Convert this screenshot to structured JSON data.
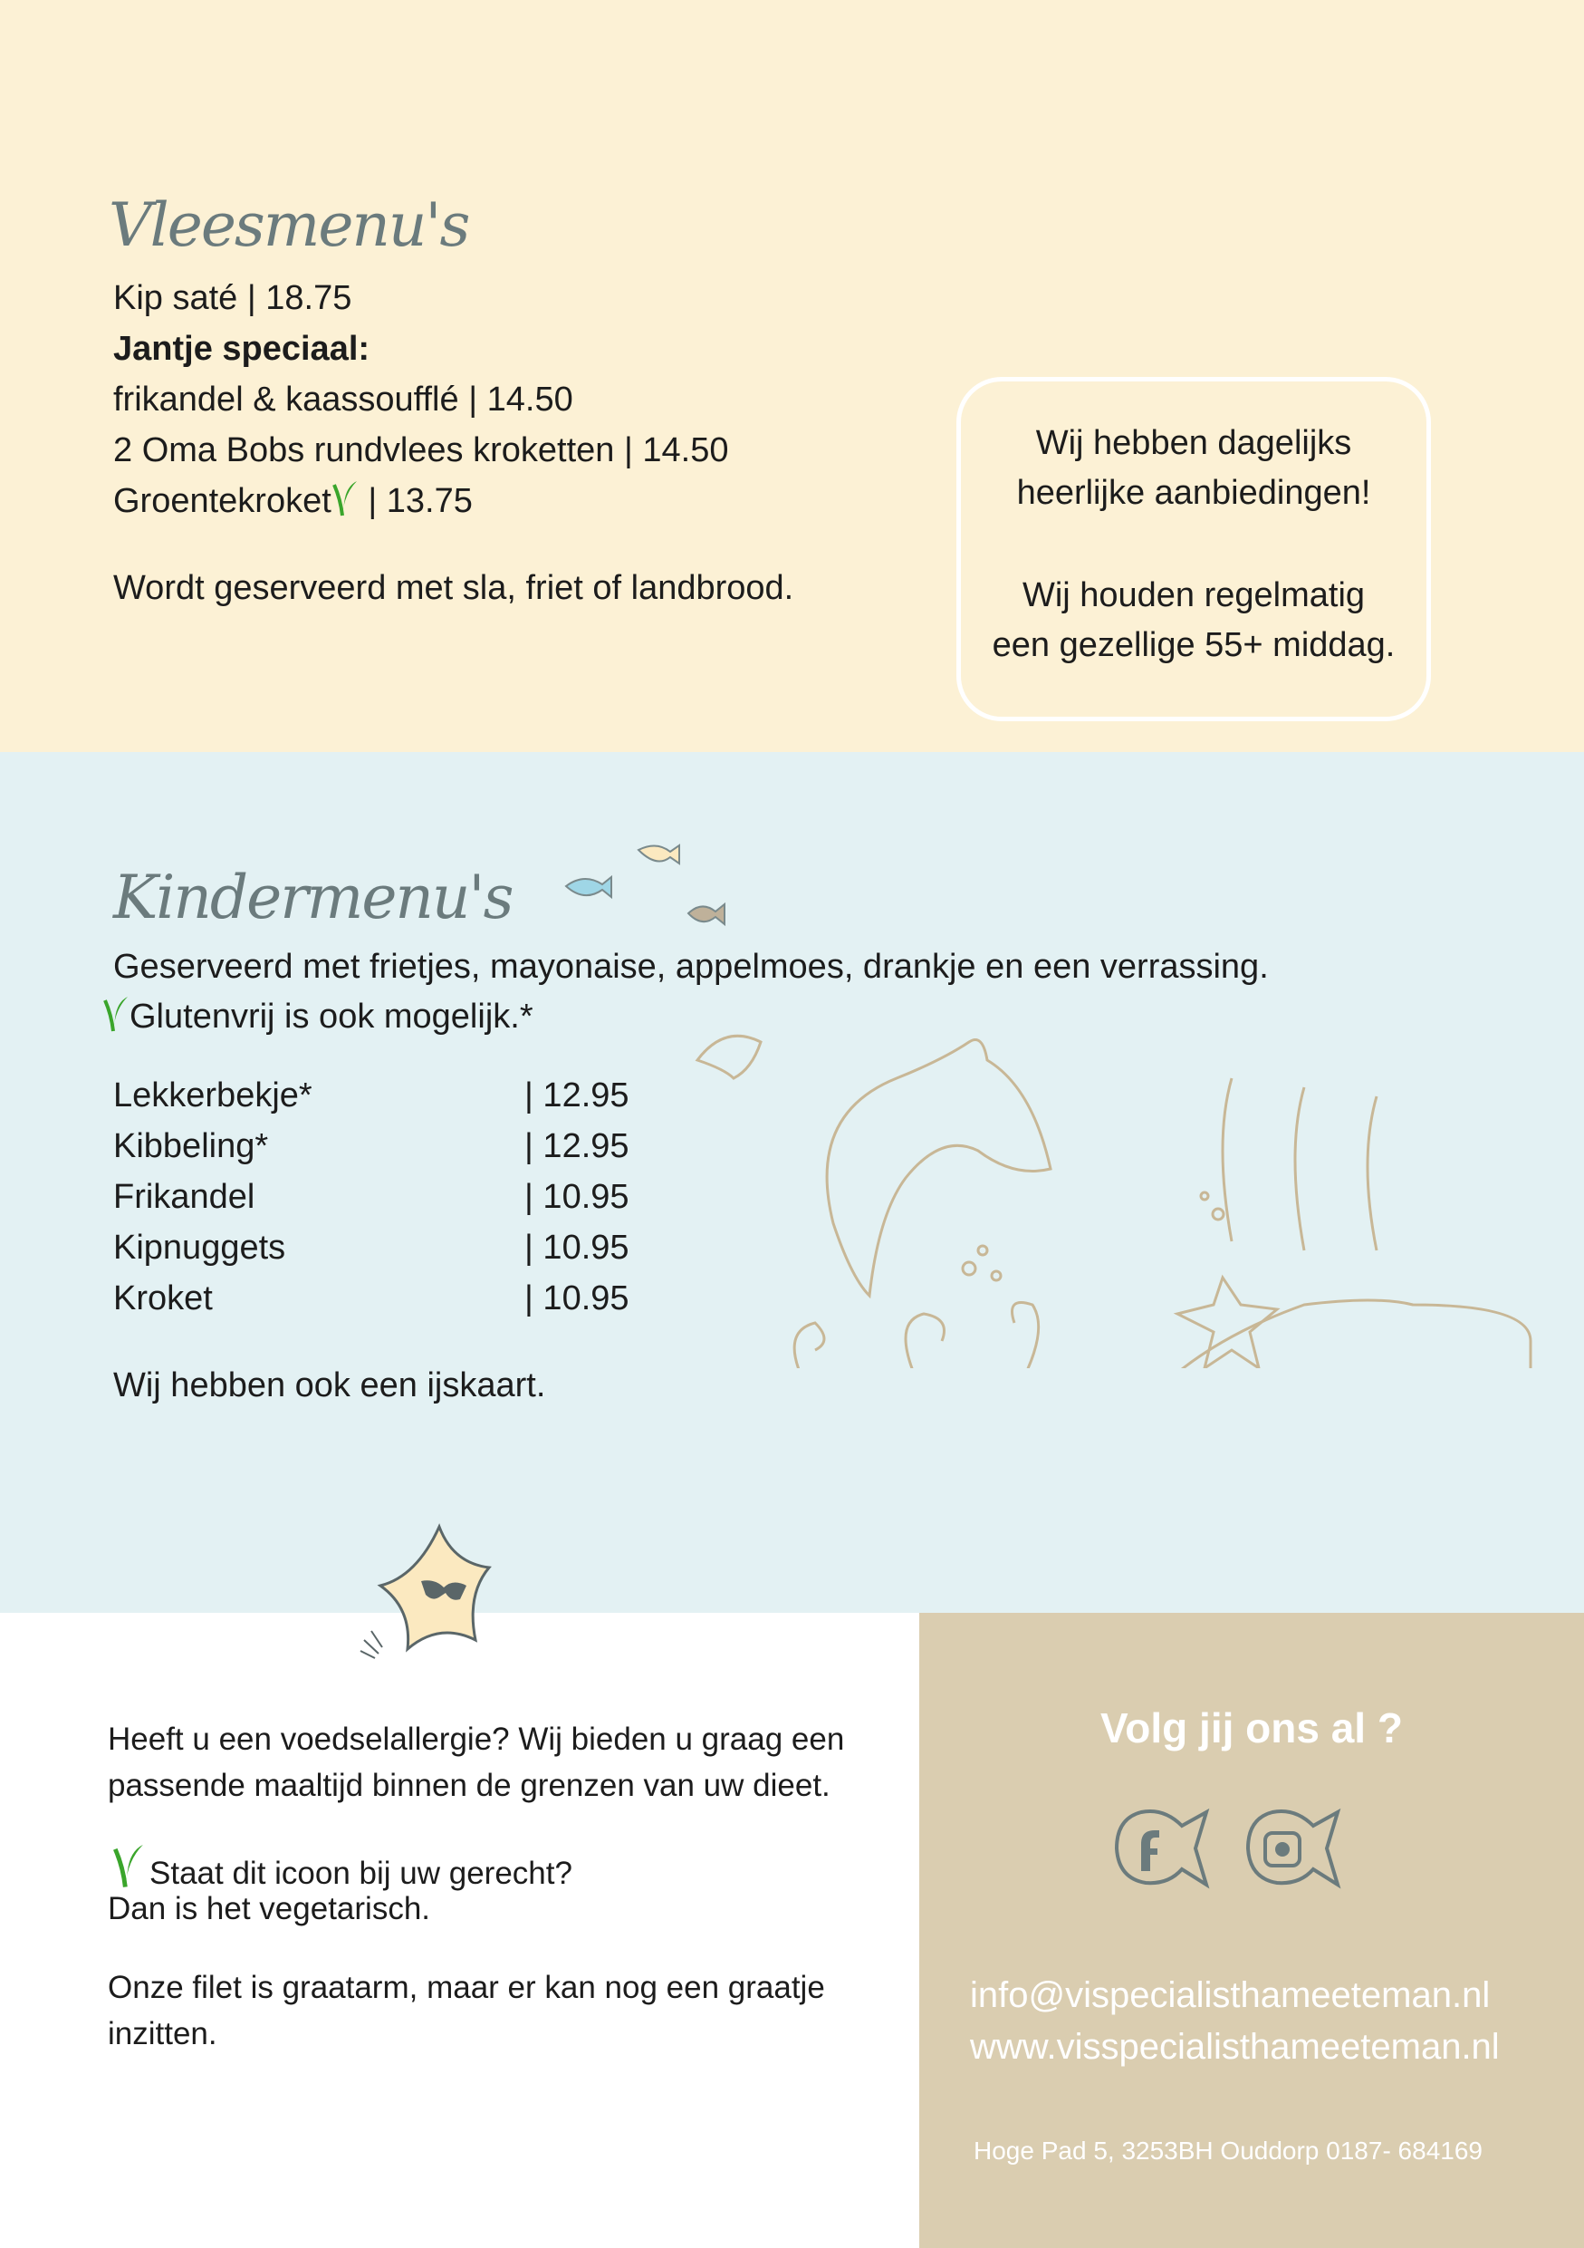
{
  "colors": {
    "top_bg": "#fcf1d5",
    "kids_bg": "#e3f1f3",
    "social_bg": "#dacdb0",
    "title": "#6b7b7d",
    "vegetarian": "#3aa52b",
    "icon": "#6b7b7d"
  },
  "meat": {
    "title": "Vleesmenu's",
    "lines": [
      "Kip saté | 18.75",
      "Jantje speciaal:",
      "frikandel & kaassoufflé  | 14.50",
      "2 Oma Bobs rundvlees kroketten | 14.50"
    ],
    "groente_name": "Groentekroket",
    "groente_price": "| 13.75",
    "note": "Wordt geserveerd met sla, friet of landbrood."
  },
  "offers": {
    "lines": [
      "Wij hebben dagelijks",
      "heerlijke aanbiedingen!",
      "Wij houden regelmatig",
      "een gezellige 55+ middag."
    ]
  },
  "kids": {
    "title": "Kindermenu's",
    "subtitle": "Geserveerd met frietjes, mayonaise, appelmoes, drankje en een verrassing.",
    "gluten": "Glutenvrij is ook mogelijk.*",
    "items": [
      {
        "name": "Lekkerbekje*",
        "price": "| 12.95"
      },
      {
        "name": "Kibbeling*",
        "price": "| 12.95"
      },
      {
        "name": "Frikandel",
        "price": "| 10.95"
      },
      {
        "name": "Kipnuggets",
        "price": "| 10.95"
      },
      {
        "name": "Kroket",
        "price": "| 10.95"
      }
    ],
    "note": "Wij hebben ook een ijskaart."
  },
  "info": {
    "allergy": [
      "Heeft u een voedselallergie? Wij bieden u graag een",
      "passende maaltijd binnen de grenzen van uw dieet."
    ],
    "veg": [
      "Staat dit icoon bij uw gerecht?",
      "Dan is het vegetarisch."
    ],
    "filet": [
      "Onze filet is graatarm, maar er kan nog een graatje",
      "inzitten."
    ]
  },
  "social": {
    "title": "Volg jij ons al ?",
    "icons": [
      "facebook-fish-icon",
      "instagram-fish-icon"
    ],
    "email": "info@vispecialisthameeteman.nl",
    "website": "www.visspecialisthameeteman.nl",
    "address": "Hoge Pad 5, 3253BH Ouddorp 0187- 684169"
  }
}
